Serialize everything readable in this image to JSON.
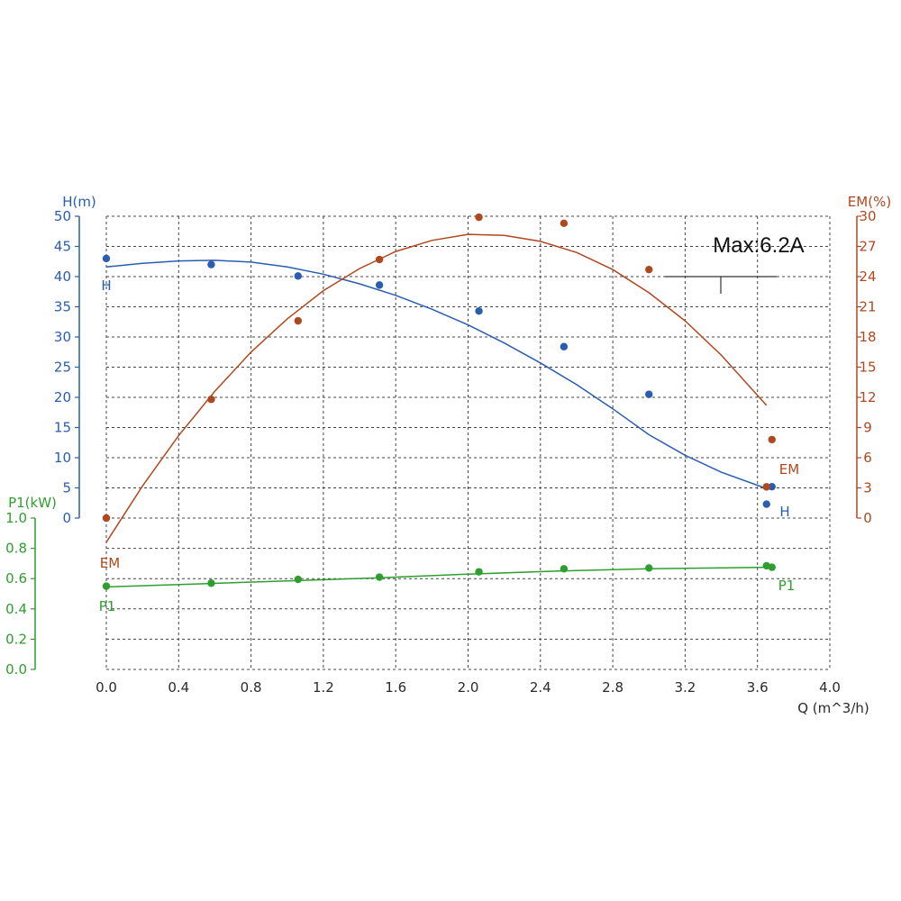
{
  "chart_data": {
    "type": "line",
    "annotation": "Max:6.2A",
    "grid": true,
    "x_axis": {
      "label": "Q (m^3/h)",
      "range": [
        0,
        4.0
      ],
      "ticks": [
        "0.0",
        "0.4",
        "0.8",
        "1.2",
        "1.6",
        "2.0",
        "2.4",
        "2.8",
        "3.2",
        "3.6",
        "4.0"
      ]
    },
    "y_axes": {
      "H": {
        "label": "H(m)",
        "range": [
          0,
          50
        ],
        "ticks": [
          "0",
          "5",
          "10",
          "15",
          "20",
          "25",
          "30",
          "35",
          "40",
          "45",
          "50"
        ],
        "color": "#2a5db0",
        "side": "left-upper"
      },
      "EM": {
        "label": "EM(%)",
        "range": [
          0,
          30
        ],
        "ticks": [
          "0",
          "3",
          "6",
          "9",
          "12",
          "15",
          "18",
          "21",
          "24",
          "27",
          "30"
        ],
        "color": "#b0481f",
        "side": "right"
      },
      "P1": {
        "label": "P1(kW)",
        "range": [
          0,
          1.0
        ],
        "ticks": [
          "0.0",
          "0.2",
          "0.4",
          "0.6",
          "0.8",
          "1.0"
        ],
        "color": "#2e9e2e",
        "side": "left-lower"
      }
    },
    "series": [
      {
        "name": "H",
        "axis": "H",
        "color": "#2a5db0",
        "points": [
          [
            0.0,
            43.0
          ],
          [
            0.58,
            42.0
          ],
          [
            1.06,
            40.1
          ],
          [
            1.51,
            38.6
          ],
          [
            2.06,
            34.3
          ],
          [
            2.53,
            28.4
          ],
          [
            3.0,
            20.5
          ],
          [
            3.65,
            2.3
          ],
          [
            3.68,
            5.2
          ]
        ],
        "fit": [
          [
            0.0,
            41.6
          ],
          [
            0.2,
            42.2
          ],
          [
            0.4,
            42.6
          ],
          [
            0.6,
            42.7
          ],
          [
            0.8,
            42.4
          ],
          [
            1.0,
            41.6
          ],
          [
            1.2,
            40.4
          ],
          [
            1.4,
            38.8
          ],
          [
            1.6,
            36.9
          ],
          [
            1.8,
            34.6
          ],
          [
            2.0,
            32.0
          ],
          [
            2.2,
            29.0
          ],
          [
            2.4,
            25.7
          ],
          [
            2.6,
            22.1
          ],
          [
            2.8,
            18.1
          ],
          [
            3.0,
            13.8
          ],
          [
            3.2,
            10.4
          ],
          [
            3.4,
            7.6
          ],
          [
            3.64,
            5.0
          ]
        ]
      },
      {
        "name": "EM",
        "axis": "EM",
        "color": "#b0481f",
        "points": [
          [
            0.0,
            0.0
          ],
          [
            0.58,
            11.8
          ],
          [
            1.06,
            19.6
          ],
          [
            1.51,
            25.7
          ],
          [
            2.06,
            29.9
          ],
          [
            2.53,
            29.3
          ],
          [
            3.0,
            24.7
          ],
          [
            3.65,
            3.1
          ],
          [
            3.68,
            7.8
          ]
        ],
        "fit": [
          [
            0.0,
            -2.4
          ],
          [
            0.2,
            3.2
          ],
          [
            0.4,
            8.2
          ],
          [
            0.6,
            12.6
          ],
          [
            0.8,
            16.5
          ],
          [
            1.0,
            19.8
          ],
          [
            1.2,
            22.6
          ],
          [
            1.4,
            24.8
          ],
          [
            1.6,
            26.5
          ],
          [
            1.8,
            27.6
          ],
          [
            2.0,
            28.2
          ],
          [
            2.2,
            28.1
          ],
          [
            2.4,
            27.5
          ],
          [
            2.6,
            26.4
          ],
          [
            2.8,
            24.7
          ],
          [
            3.0,
            22.4
          ],
          [
            3.2,
            19.6
          ],
          [
            3.4,
            16.2
          ],
          [
            3.65,
            11.2
          ]
        ]
      },
      {
        "name": "P1",
        "axis": "P1",
        "color": "#2e9e2e",
        "points": [
          [
            0.0,
            0.55
          ],
          [
            0.58,
            0.57
          ],
          [
            1.06,
            0.595
          ],
          [
            1.51,
            0.61
          ],
          [
            2.06,
            0.645
          ],
          [
            2.53,
            0.665
          ],
          [
            3.0,
            0.67
          ],
          [
            3.65,
            0.685
          ],
          [
            3.68,
            0.675
          ]
        ],
        "fit": [
          [
            0.0,
            0.545
          ],
          [
            0.5,
            0.565
          ],
          [
            1.0,
            0.585
          ],
          [
            1.5,
            0.605
          ],
          [
            2.0,
            0.63
          ],
          [
            2.5,
            0.65
          ],
          [
            3.0,
            0.665
          ],
          [
            3.65,
            0.675
          ]
        ]
      }
    ]
  }
}
